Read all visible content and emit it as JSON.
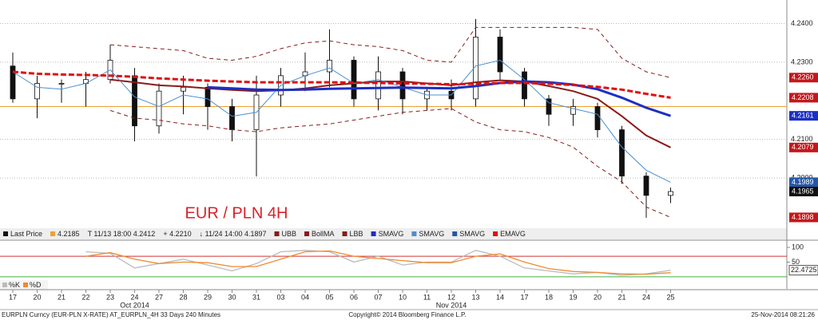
{
  "chart_data": {
    "type": "candlestick",
    "title": "EUR / PLN 4H",
    "categories": [
      "17",
      "20",
      "21",
      "22",
      "23",
      "24",
      "27",
      "28",
      "29",
      "30",
      "31",
      "03",
      "04",
      "05",
      "06",
      "07",
      "10",
      "11",
      "12",
      "13",
      "14",
      "17",
      "18",
      "19",
      "20",
      "21",
      "24",
      "25"
    ],
    "months": [
      {
        "label": "Oct 2014",
        "at": 5
      },
      {
        "label": "Nov 2014",
        "at": 18
      }
    ],
    "ohlc": {
      "open": [
        4.229,
        4.2205,
        4.2245,
        4.2245,
        4.2255,
        4.2265,
        4.2135,
        4.2225,
        4.2235,
        4.2185,
        4.2125,
        4.2215,
        4.2265,
        4.2275,
        4.2305,
        4.2205,
        4.2275,
        4.2205,
        4.2225,
        4.2205,
        4.2365,
        4.2275,
        4.2205,
        4.2165,
        4.2185,
        4.2125,
        4.2005,
        4.1955
      ],
      "high": [
        4.2325,
        4.2265,
        4.2255,
        4.2275,
        4.2345,
        4.2285,
        4.2245,
        4.2265,
        4.2245,
        4.2205,
        4.2265,
        4.2285,
        4.2325,
        4.2385,
        4.2315,
        4.2315,
        4.2285,
        4.2235,
        4.2255,
        4.2412,
        4.2385,
        4.2285,
        4.2215,
        4.2205,
        4.2195,
        4.2135,
        4.2015,
        4.1975
      ],
      "low": [
        4.2195,
        4.2155,
        4.2195,
        4.2185,
        4.2245,
        4.2095,
        4.2115,
        4.2165,
        4.2125,
        4.2095,
        4.2004,
        4.2185,
        4.2225,
        4.2235,
        4.2185,
        4.2175,
        4.2165,
        4.2175,
        4.2175,
        4.2185,
        4.2255,
        4.2185,
        4.2135,
        4.2135,
        4.2105,
        4.1985,
        4.1897,
        4.1935
      ],
      "close": [
        4.2205,
        4.2245,
        4.2245,
        4.2255,
        4.2305,
        4.2135,
        4.2225,
        4.2235,
        4.2185,
        4.2125,
        4.2215,
        4.2265,
        4.2275,
        4.2305,
        4.2205,
        4.2275,
        4.2205,
        4.2225,
        4.2205,
        4.2365,
        4.2275,
        4.2205,
        4.2165,
        4.2185,
        4.2125,
        4.2005,
        4.1955,
        4.1965
      ]
    },
    "series": [
      {
        "color": "#8b1a1a",
        "dash": true,
        "width": 1,
        "values": [
          null,
          null,
          null,
          null,
          4.2345,
          4.234,
          4.2335,
          4.233,
          4.231,
          4.2305,
          4.2315,
          4.2335,
          4.235,
          4.2355,
          4.2345,
          4.234,
          4.233,
          4.2305,
          4.23,
          4.239,
          4.239,
          4.239,
          4.239,
          4.239,
          4.2385,
          4.231,
          4.2275,
          4.226
        ]
      },
      {
        "color": "#8b1a1a",
        "dash": false,
        "width": 2,
        "values": [
          null,
          null,
          null,
          null,
          4.2255,
          4.2248,
          4.224,
          4.2237,
          4.2232,
          4.2228,
          4.2225,
          4.2227,
          4.2232,
          4.224,
          4.2245,
          4.225,
          4.225,
          4.2245,
          4.224,
          4.2248,
          4.2253,
          4.225,
          4.2238,
          4.2225,
          4.2205,
          4.216,
          4.211,
          4.2079
        ]
      },
      {
        "color": "#8b1a1a",
        "dash": true,
        "width": 1,
        "values": [
          null,
          null,
          null,
          null,
          4.2175,
          4.2155,
          4.215,
          4.214,
          4.2135,
          4.2125,
          4.212,
          4.213,
          4.2135,
          4.214,
          4.215,
          4.216,
          4.217,
          4.2175,
          4.218,
          4.2145,
          4.2125,
          4.212,
          4.2105,
          4.208,
          4.203,
          4.199,
          4.1925,
          4.1898
        ]
      },
      {
        "color": "#4a8fd1",
        "dash": false,
        "width": 1,
        "values": [
          4.2275,
          4.2235,
          4.223,
          4.2245,
          4.228,
          4.221,
          4.2185,
          4.2215,
          4.2205,
          4.216,
          4.217,
          4.224,
          4.2265,
          4.2285,
          4.2245,
          4.2255,
          4.2235,
          4.2215,
          4.2215,
          4.229,
          4.2305,
          4.2255,
          4.2195,
          4.218,
          4.2165,
          4.208,
          4.202,
          4.1989
        ]
      },
      {
        "color": "#1c2fc4",
        "dash": false,
        "width": 3,
        "values": [
          null,
          null,
          null,
          null,
          null,
          null,
          null,
          null,
          4.2235,
          4.2232,
          4.2229,
          4.2228,
          4.2229,
          4.2231,
          4.2232,
          4.2233,
          4.2234,
          4.2233,
          4.2232,
          4.2238,
          4.2246,
          4.225,
          4.2248,
          4.2242,
          4.223,
          4.2208,
          4.2182,
          4.2161
        ]
      },
      {
        "color": "#dd1111",
        "dash": true,
        "width": 3,
        "values": [
          4.2275,
          4.227,
          4.2268,
          4.2267,
          4.2265,
          4.2262,
          4.2258,
          4.2255,
          4.2252,
          4.225,
          4.2248,
          4.2248,
          4.2248,
          4.2248,
          4.2247,
          4.2246,
          4.2245,
          4.2244,
          4.2243,
          4.2244,
          4.2246,
          4.2246,
          4.2244,
          4.2241,
          4.2236,
          4.2229,
          4.2218,
          4.2208
        ]
      }
    ],
    "reference_line": {
      "value": 4.2185,
      "color": "#f0a030"
    },
    "ylim": [
      4.1872,
      4.2461
    ],
    "yticks": [
      {
        "value": 4.24,
        "label": "4.2400"
      },
      {
        "value": 4.23,
        "label": "4.2300"
      },
      {
        "value": 4.21,
        "label": "4.2100"
      },
      {
        "value": 4.2,
        "label": "4.2000"
      }
    ],
    "grid": true,
    "price_tags": [
      {
        "value": 4.226,
        "label": "4.2260",
        "color": "#c4171b"
      },
      {
        "value": 4.2208,
        "label": "4.2208",
        "color": "#c4171b"
      },
      {
        "value": 4.2161,
        "label": "4.2161",
        "color": "#1c2fc4"
      },
      {
        "value": 4.2079,
        "label": "4.2079",
        "color": "#c4171b"
      },
      {
        "value": 4.1989,
        "label": "4.1989",
        "color": "#2457a8"
      },
      {
        "value": 4.1965,
        "label": "4.1965",
        "color": "#111111"
      },
      {
        "value": 4.1898,
        "label": "4.1898",
        "color": "#c4171b"
      }
    ],
    "legend": [
      {
        "text": "Last Price",
        "color": "#111111"
      },
      {
        "text": "4.2185",
        "color": "#f0a030"
      },
      {
        "text": "T 11/13 18:00 4.2412",
        "color": null
      },
      {
        "text": "+ 4.2210",
        "color": null
      },
      {
        "text": "↓ 11/24 14:00 4.1897",
        "color": null
      },
      {
        "text": "UBB",
        "color": "#8b1a1a"
      },
      {
        "text": "BollMA",
        "color": "#8b1a1a"
      },
      {
        "text": "LBB",
        "color": "#8b1a1a"
      },
      {
        "text": "SMAVG",
        "color": "#1c2fc4"
      },
      {
        "text": "SMAVG",
        "color": "#4a8fd1"
      },
      {
        "text": "SMAVG",
        "color": "#2457a8"
      },
      {
        "text": "EMAVG",
        "color": "#dd1111"
      }
    ],
    "oscillator": {
      "ylim": [
        -41,
        119
      ],
      "yticks": [
        100,
        50
      ],
      "levels": [
        {
          "value": 70,
          "color": "#d03030"
        },
        {
          "value": 0,
          "color": "#40b040"
        }
      ],
      "series": [
        {
          "name": "%K",
          "color": "#bbbbbb",
          "values": [
            null,
            null,
            null,
            85,
            80,
            30,
            45,
            60,
            40,
            20,
            45,
            85,
            90,
            85,
            50,
            70,
            40,
            50,
            50,
            90,
            70,
            30,
            20,
            10,
            15,
            5,
            10,
            22.4725
          ]
        },
        {
          "name": "%D",
          "color": "#f08a30",
          "values": [
            null,
            null,
            null,
            70,
            82,
            60,
            45,
            50,
            48,
            35,
            35,
            60,
            85,
            88,
            70,
            62,
            55,
            48,
            48,
            70,
            78,
            50,
            28,
            18,
            15,
            10,
            9,
            14
          ]
        }
      ],
      "tag": {
        "value": 22.4725,
        "label": "22.4725"
      }
    },
    "footer": {
      "left": "EURPLN Curncy (EUR-PLN X-RATE) AT_EURPLN_4H 33 Days 240 Minutes",
      "center": "Copyright© 2014 Bloomberg Finance L.P.",
      "right": "25-Nov-2014 08:21:26"
    }
  }
}
